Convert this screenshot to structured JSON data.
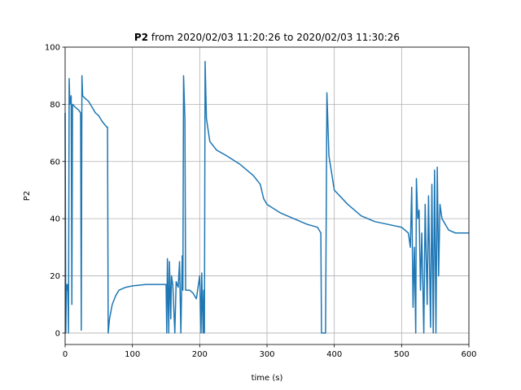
{
  "chart_data": {
    "type": "line",
    "title": {
      "variable": "P2",
      "text": "from 2020/02/03 11:20:26 to 2020/02/03 11:30:26"
    },
    "xlabel": "time (s)",
    "ylabel": "P2",
    "color": "#1f77b4",
    "x": [
      0,
      1,
      2,
      3,
      4,
      5,
      6,
      7,
      9,
      10,
      11,
      15,
      20,
      23,
      24,
      25,
      26,
      30,
      35,
      40,
      45,
      50,
      55,
      62,
      63,
      64,
      66,
      70,
      75,
      80,
      90,
      100,
      120,
      140,
      150,
      151,
      152,
      154,
      155,
      157,
      158,
      160,
      163,
      165,
      168,
      170,
      172,
      174,
      175,
      176,
      178,
      179,
      185,
      190,
      195,
      200,
      202,
      203,
      205,
      206,
      207,
      208,
      210,
      215,
      225,
      240,
      260,
      280,
      290,
      295,
      300,
      320,
      340,
      360,
      375,
      380,
      381,
      387,
      389,
      392,
      400,
      420,
      440,
      460,
      480,
      500,
      510,
      513,
      515,
      517,
      519,
      521,
      522,
      524,
      526,
      528,
      530,
      533,
      535,
      538,
      540,
      543,
      545,
      547,
      549,
      551,
      553,
      555,
      557,
      560,
      570,
      580,
      600
    ],
    "values": [
      77,
      0,
      17,
      15,
      17,
      0,
      89,
      80,
      83,
      10,
      80,
      79,
      78,
      77,
      1,
      90,
      83,
      82,
      81,
      79,
      77,
      76,
      74,
      72,
      72,
      0,
      5,
      10,
      13,
      15,
      16,
      16.5,
      17,
      17,
      17,
      0,
      26,
      0,
      25,
      5,
      20,
      17,
      0,
      18,
      16,
      25,
      0,
      27,
      15,
      90,
      75,
      15,
      15,
      14,
      12,
      20,
      0,
      21,
      0,
      15,
      0,
      95,
      75,
      67,
      64,
      62,
      59,
      55,
      52,
      47,
      45,
      42,
      40,
      38,
      37,
      35,
      0,
      0,
      84,
      62,
      50,
      45,
      41,
      39,
      38,
      37,
      35,
      30,
      51,
      9,
      30,
      0,
      54,
      40,
      43,
      15,
      35,
      0,
      45,
      10,
      48,
      2,
      52,
      0,
      57,
      0,
      58,
      20,
      45,
      40,
      36,
      35,
      35
    ],
    "xlim": [
      0,
      600
    ],
    "ylim": [
      -4,
      100
    ],
    "xticks": [
      0,
      100,
      200,
      300,
      400,
      500,
      600
    ],
    "yticks": [
      0,
      20,
      40,
      60,
      80,
      100
    ],
    "grid": true
  }
}
